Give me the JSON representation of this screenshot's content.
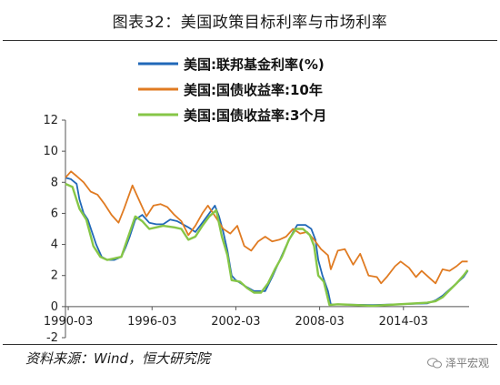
{
  "header": {
    "title": "图表32：美国政策目标利率与市场利率"
  },
  "footer": {
    "source": "资料来源：Wind，恒大研究院",
    "badge": "泽平宏观"
  },
  "colors": {
    "fed_funds": "#2168b8",
    "treasury_10y": "#e07b22",
    "tbill_3m": "#86c647",
    "axis": "#555555"
  },
  "chart_data": {
    "type": "line",
    "ylim": [
      -2,
      12
    ],
    "xlim": [
      1990.0,
      2018.9
    ],
    "yticks": [
      -2,
      0,
      2,
      4,
      6,
      8,
      10,
      12
    ],
    "xticks": [
      {
        "x": 1990.2,
        "label": "1990-03"
      },
      {
        "x": 1996.2,
        "label": "1996-03"
      },
      {
        "x": 2002.2,
        "label": "2002-03"
      },
      {
        "x": 2008.2,
        "label": "2008-03"
      },
      {
        "x": 2014.2,
        "label": "2014-03"
      }
    ],
    "series": [
      {
        "name": "美国:联邦基金利率(%)",
        "color": "#2168b8",
        "points": [
          [
            1990.0,
            8.3
          ],
          [
            1990.4,
            8.2
          ],
          [
            1990.8,
            7.9
          ],
          [
            1991.0,
            6.9
          ],
          [
            1991.3,
            6.0
          ],
          [
            1991.6,
            5.6
          ],
          [
            1991.9,
            4.8
          ],
          [
            1992.2,
            4.0
          ],
          [
            1992.6,
            3.2
          ],
          [
            1993.0,
            3.0
          ],
          [
            1993.5,
            3.0
          ],
          [
            1994.0,
            3.2
          ],
          [
            1994.3,
            3.8
          ],
          [
            1994.6,
            4.5
          ],
          [
            1995.0,
            5.6
          ],
          [
            1995.5,
            5.9
          ],
          [
            1996.0,
            5.4
          ],
          [
            1996.5,
            5.3
          ],
          [
            1997.0,
            5.3
          ],
          [
            1997.5,
            5.6
          ],
          [
            1998.0,
            5.5
          ],
          [
            1998.8,
            5.1
          ],
          [
            1999.3,
            4.8
          ],
          [
            1999.8,
            5.4
          ],
          [
            2000.3,
            6.0
          ],
          [
            2000.7,
            6.5
          ],
          [
            2001.0,
            5.8
          ],
          [
            2001.3,
            4.8
          ],
          [
            2001.6,
            3.6
          ],
          [
            2001.9,
            2.0
          ],
          [
            2002.2,
            1.7
          ],
          [
            2002.9,
            1.3
          ],
          [
            2003.5,
            1.0
          ],
          [
            2004.3,
            1.0
          ],
          [
            2004.8,
            1.9
          ],
          [
            2005.3,
            2.9
          ],
          [
            2005.8,
            3.9
          ],
          [
            2006.3,
            4.8
          ],
          [
            2006.6,
            5.25
          ],
          [
            2007.2,
            5.25
          ],
          [
            2007.6,
            5.0
          ],
          [
            2007.9,
            4.3
          ],
          [
            2008.1,
            3.0
          ],
          [
            2008.4,
            2.0
          ],
          [
            2008.8,
            1.0
          ],
          [
            2009.0,
            0.15
          ],
          [
            2012.0,
            0.1
          ],
          [
            2015.9,
            0.2
          ],
          [
            2016.5,
            0.4
          ],
          [
            2017.0,
            0.7
          ],
          [
            2017.5,
            1.1
          ],
          [
            2018.0,
            1.5
          ],
          [
            2018.5,
            1.9
          ],
          [
            2018.8,
            2.3
          ]
        ]
      },
      {
        "name": "美国:国债收益率:10年",
        "color": "#e07b22",
        "points": [
          [
            1990.0,
            8.3
          ],
          [
            1990.4,
            8.7
          ],
          [
            1990.8,
            8.4
          ],
          [
            1991.3,
            8.0
          ],
          [
            1991.8,
            7.4
          ],
          [
            1992.3,
            7.2
          ],
          [
            1992.8,
            6.6
          ],
          [
            1993.3,
            5.9
          ],
          [
            1993.8,
            5.4
          ],
          [
            1994.2,
            6.3
          ],
          [
            1994.8,
            7.8
          ],
          [
            1995.3,
            6.8
          ],
          [
            1995.8,
            5.8
          ],
          [
            1996.3,
            6.5
          ],
          [
            1996.8,
            6.6
          ],
          [
            1997.3,
            6.4
          ],
          [
            1997.8,
            5.9
          ],
          [
            1998.3,
            5.5
          ],
          [
            1998.8,
            4.6
          ],
          [
            1999.3,
            5.2
          ],
          [
            1999.8,
            6.0
          ],
          [
            2000.2,
            6.5
          ],
          [
            2000.8,
            5.7
          ],
          [
            2001.3,
            5.0
          ],
          [
            2001.8,
            4.7
          ],
          [
            2002.3,
            5.2
          ],
          [
            2002.8,
            3.9
          ],
          [
            2003.3,
            3.6
          ],
          [
            2003.8,
            4.2
          ],
          [
            2004.3,
            4.5
          ],
          [
            2004.8,
            4.2
          ],
          [
            2005.3,
            4.3
          ],
          [
            2005.8,
            4.5
          ],
          [
            2006.3,
            5.0
          ],
          [
            2006.8,
            4.7
          ],
          [
            2007.3,
            4.8
          ],
          [
            2007.8,
            4.3
          ],
          [
            2008.3,
            3.7
          ],
          [
            2008.8,
            3.3
          ],
          [
            2009.0,
            2.4
          ],
          [
            2009.5,
            3.6
          ],
          [
            2010.0,
            3.7
          ],
          [
            2010.6,
            2.7
          ],
          [
            2011.1,
            3.4
          ],
          [
            2011.7,
            2.0
          ],
          [
            2012.3,
            1.9
          ],
          [
            2012.6,
            1.5
          ],
          [
            2013.0,
            1.9
          ],
          [
            2013.6,
            2.6
          ],
          [
            2014.0,
            2.9
          ],
          [
            2014.6,
            2.5
          ],
          [
            2015.1,
            1.9
          ],
          [
            2015.5,
            2.3
          ],
          [
            2016.0,
            1.9
          ],
          [
            2016.5,
            1.5
          ],
          [
            2017.0,
            2.4
          ],
          [
            2017.5,
            2.3
          ],
          [
            2018.0,
            2.6
          ],
          [
            2018.4,
            2.9
          ],
          [
            2018.8,
            2.9
          ]
        ]
      },
      {
        "name": "美国:国债收益率:3个月",
        "color": "#86c647",
        "points": [
          [
            1990.0,
            7.9
          ],
          [
            1990.5,
            7.7
          ],
          [
            1991.0,
            6.3
          ],
          [
            1991.5,
            5.6
          ],
          [
            1992.0,
            3.9
          ],
          [
            1992.5,
            3.2
          ],
          [
            1993.0,
            3.0
          ],
          [
            1993.5,
            3.1
          ],
          [
            1994.0,
            3.2
          ],
          [
            1994.5,
            4.5
          ],
          [
            1995.0,
            5.8
          ],
          [
            1995.5,
            5.5
          ],
          [
            1996.0,
            5.0
          ],
          [
            1996.5,
            5.1
          ],
          [
            1997.0,
            5.2
          ],
          [
            1997.8,
            5.1
          ],
          [
            1998.3,
            5.0
          ],
          [
            1998.8,
            4.3
          ],
          [
            1999.3,
            4.5
          ],
          [
            1999.8,
            5.2
          ],
          [
            2000.3,
            5.8
          ],
          [
            2000.8,
            6.2
          ],
          [
            2001.2,
            4.5
          ],
          [
            2001.6,
            3.3
          ],
          [
            2001.9,
            1.7
          ],
          [
            2002.5,
            1.6
          ],
          [
            2003.0,
            1.2
          ],
          [
            2003.5,
            0.9
          ],
          [
            2004.0,
            0.9
          ],
          [
            2004.5,
            1.5
          ],
          [
            2005.0,
            2.4
          ],
          [
            2005.5,
            3.2
          ],
          [
            2006.0,
            4.3
          ],
          [
            2006.5,
            5.0
          ],
          [
            2007.0,
            5.0
          ],
          [
            2007.5,
            4.6
          ],
          [
            2007.8,
            3.9
          ],
          [
            2008.1,
            2.0
          ],
          [
            2008.5,
            1.6
          ],
          [
            2008.9,
            0.1
          ],
          [
            2009.5,
            0.15
          ],
          [
            2012.0,
            0.05
          ],
          [
            2015.9,
            0.25
          ],
          [
            2016.5,
            0.35
          ],
          [
            2017.0,
            0.6
          ],
          [
            2017.5,
            1.05
          ],
          [
            2018.0,
            1.5
          ],
          [
            2018.5,
            2.0
          ],
          [
            2018.8,
            2.35
          ]
        ]
      }
    ]
  }
}
